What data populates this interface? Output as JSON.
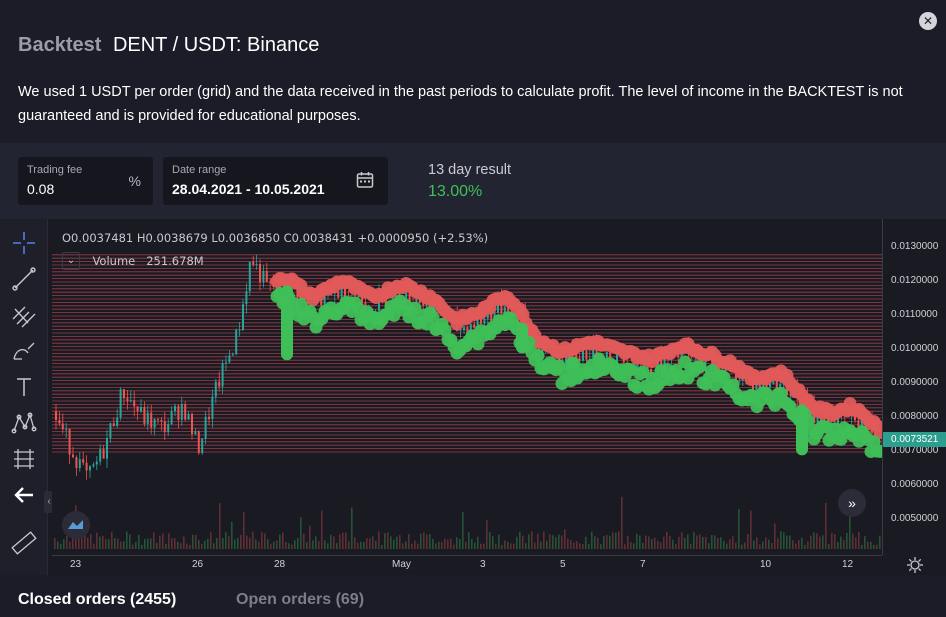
{
  "header": {
    "title_prefix": "Backtest",
    "title_pair": "DENT / USDT: Binance",
    "description": "We used 1 USDT per order (grid) and the data received in the past periods to calculate profit. The level of income in the BACKTEST is not guaranteed and is provided for educational purposes.",
    "close_icon": "close-icon"
  },
  "params": {
    "fee_label": "Trading fee",
    "fee_value": "0.08",
    "fee_unit": "%",
    "date_label": "Date range",
    "date_value": "28.04.2021 - 10.05.2021",
    "result_label": "13 day result",
    "result_value": "13.00%"
  },
  "chart": {
    "ohlc_text": "O0.0037481 H0.0038679 L0.0036850 C0.0038431 +0.0000950 (+2.53%)",
    "volume_label": "Volume",
    "volume_value": "251.678M",
    "current_price": "0.0073521",
    "y_ticks": [
      "0.0130000",
      "0.0120000",
      "0.0110000",
      "0.0100000",
      "0.0090000",
      "0.0080000",
      "0.0070000",
      "0.0060000",
      "0.0050000"
    ],
    "x_ticks": [
      "23",
      "26",
      "28",
      "May",
      "3",
      "5",
      "7",
      "10",
      "12"
    ]
  },
  "tabs": {
    "closed": "Closed orders (2455)",
    "open": "Open orders (69)"
  },
  "colors": {
    "up": "#3fbf58",
    "down": "#e05a5a",
    "grid_line": "#c24a55",
    "accent": "#2b9e8e"
  }
}
